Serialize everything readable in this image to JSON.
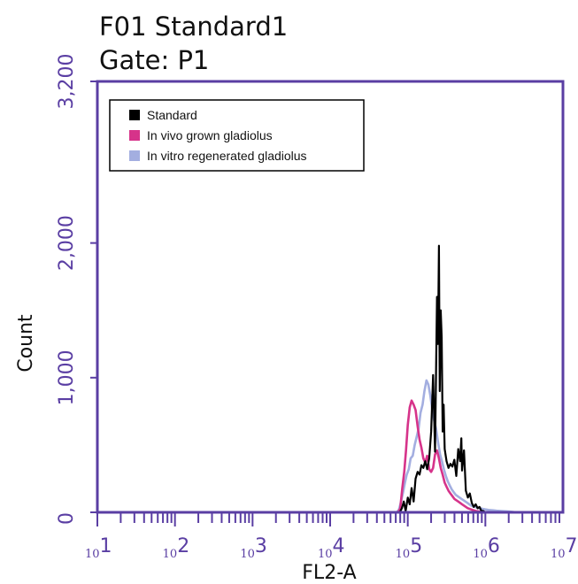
{
  "header": {
    "title_line1": "F01 Standard1",
    "title_line2": "Gate: P1"
  },
  "colors": {
    "frame": "#5a3ea3",
    "standard": "#000000",
    "in_vivo": "#d6338a",
    "in_vitro": "#a3aee0"
  },
  "chart_data": {
    "type": "line",
    "xlabel": "FL2-A",
    "ylabel": "Count",
    "x_scale": "log",
    "xlim": [
      10,
      10000000
    ],
    "ylim": [
      0,
      3200
    ],
    "yticks": [
      {
        "value": 0,
        "label": "0"
      },
      {
        "value": 1000,
        "label": "1,000"
      },
      {
        "value": 2000,
        "label": "2,000"
      },
      {
        "value": 3200,
        "label": "3,200"
      }
    ],
    "xticks": [
      {
        "value": 10,
        "base": "10",
        "exp": "1"
      },
      {
        "value": 100,
        "base": "10",
        "exp": "2"
      },
      {
        "value": 1000,
        "base": "10",
        "exp": "3"
      },
      {
        "value": 10000,
        "base": "10",
        "exp": "4"
      },
      {
        "value": 100000,
        "base": "10",
        "exp": "5"
      },
      {
        "value": 1000000,
        "base": "10",
        "exp": "6"
      },
      {
        "value": 10000000,
        "base": "10",
        "exp": "7."
      }
    ],
    "legend": {
      "position": "top-left"
    },
    "series": [
      {
        "name": "Standard",
        "color": "#000000",
        "x": [
          79000,
          84000,
          89000,
          94000,
          100000,
          106000,
          112000,
          119000,
          126000,
          134000,
          142000,
          150000,
          159000,
          168000,
          178000,
          189000,
          200000,
          212000,
          225000,
          238000,
          245000,
          252000,
          258000,
          266000,
          274000,
          282000,
          290000,
          299000,
          316000,
          335000,
          355000,
          376000,
          398000,
          422000,
          447000,
          473000,
          490000,
          501000,
          531000,
          560000,
          596000,
          631000,
          668000,
          708000,
          750000,
          794000,
          841000,
          891000,
          944000,
          1000000
        ],
        "y": [
          0,
          30,
          80,
          10,
          110,
          60,
          180,
          80,
          250,
          300,
          280,
          350,
          330,
          380,
          320,
          400,
          600,
          1020,
          450,
          1600,
          1250,
          1980,
          900,
          1500,
          1300,
          600,
          800,
          470,
          380,
          330,
          360,
          340,
          390,
          270,
          470,
          380,
          550,
          310,
          460,
          160,
          110,
          140,
          70,
          40,
          60,
          30,
          40,
          10,
          10,
          0
        ]
      },
      {
        "name": "In vivo grown gladiolus",
        "color": "#d6338a",
        "x": [
          75000,
          80000,
          85000,
          90000,
          95000,
          100000,
          106000,
          112000,
          119000,
          126000,
          134000,
          142000,
          150000,
          159000,
          168000,
          178000,
          189000,
          200000,
          212000,
          225000,
          238000,
          252000,
          266000,
          282000,
          299000,
          316000,
          335000,
          355000,
          376000,
          398000,
          422000,
          447000,
          473000,
          501000,
          531000,
          562000,
          596000,
          631000,
          668000,
          708000,
          750000,
          794000,
          841000,
          891000,
          944000,
          1000000
        ],
        "y": [
          0,
          30,
          180,
          300,
          460,
          650,
          780,
          830,
          800,
          760,
          640,
          540,
          480,
          400,
          370,
          420,
          320,
          300,
          330,
          430,
          460,
          400,
          330,
          280,
          220,
          190,
          160,
          140,
          120,
          100,
          90,
          80,
          70,
          60,
          50,
          40,
          30,
          25,
          20,
          15,
          10,
          8,
          5,
          3,
          2,
          0
        ]
      },
      {
        "name": "In vitro regenerated gladiolus",
        "color": "#a3aee0",
        "x": [
          72000,
          77000,
          82000,
          87000,
          92000,
          97000,
          103000,
          109000,
          116000,
          123000,
          130000,
          138000,
          146000,
          155000,
          164000,
          174000,
          184000,
          195000,
          207000,
          219000,
          232000,
          246000,
          261000,
          276000,
          292000,
          310000,
          328000,
          348000,
          369000,
          391000,
          414000,
          438000,
          465000,
          492000,
          522000,
          553000,
          586000,
          620000,
          658000,
          697000,
          738000,
          782000,
          829000,
          878000,
          931000,
          1000000,
          1100000,
          1250000,
          1400000,
          1600000,
          1800000,
          2000000,
          2200000,
          2500000
        ],
        "y": [
          0,
          20,
          80,
          150,
          220,
          280,
          320,
          400,
          420,
          500,
          560,
          620,
          740,
          800,
          900,
          980,
          950,
          870,
          760,
          680,
          620,
          520,
          430,
          380,
          320,
          270,
          230,
          200,
          170,
          150,
          130,
          120,
          110,
          100,
          90,
          80,
          70,
          60,
          50,
          45,
          40,
          35,
          30,
          28,
          25,
          22,
          18,
          15,
          12,
          10,
          8,
          6,
          4,
          0
        ]
      }
    ]
  }
}
